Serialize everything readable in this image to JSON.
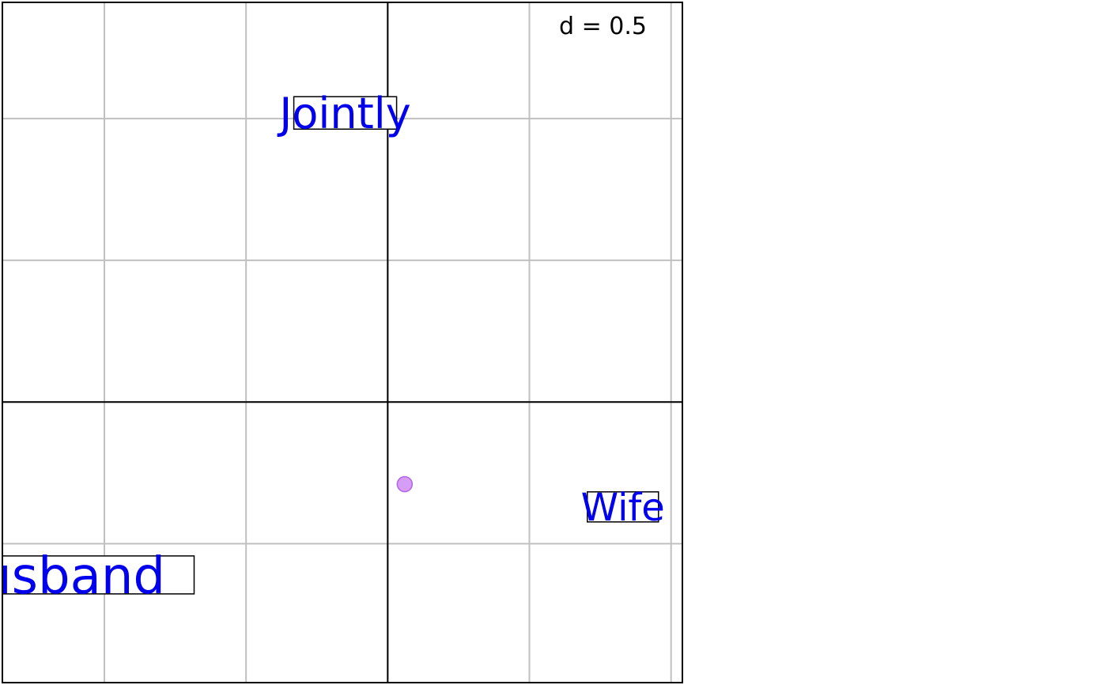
{
  "chart_data": {
    "type": "scatter",
    "scale_label": "d = 0.5",
    "grid": true,
    "grid_step": 0.5,
    "xlim": [
      -1.36,
      1.04
    ],
    "ylim": [
      -0.99,
      1.41
    ],
    "axes": {
      "x": 0,
      "y": 0
    },
    "points": [
      {
        "x": 0.06,
        "y": -0.29,
        "color": "#c77cf2"
      }
    ],
    "labels": [
      {
        "text": "Jointly",
        "x": -0.15,
        "y": 1.02,
        "color": "#0000ee",
        "size": "medium"
      },
      {
        "text": "Wife",
        "x": 0.83,
        "y": -0.37,
        "color": "#0000ee",
        "size": "small"
      },
      {
        "text": "Husband",
        "x": -1.18,
        "y": -0.61,
        "color": "#0000ee",
        "size": "large"
      }
    ]
  }
}
